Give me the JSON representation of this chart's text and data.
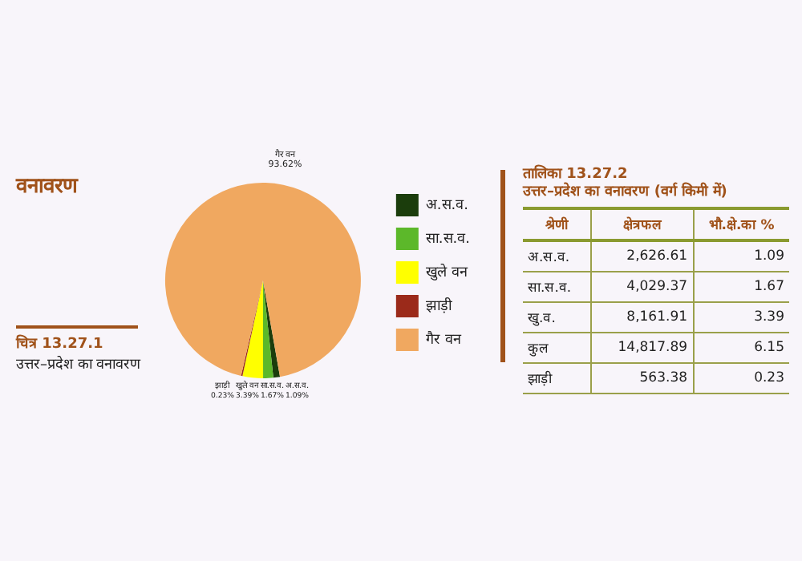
{
  "chart_data": [
    {
      "type": "pie",
      "title": "वनावरण",
      "annotations": [
        "चित्र 13.27.1",
        "उत्तर–प्रदेश का वनावरण"
      ],
      "categories": [
        "अ.स.व.",
        "सा.स.व.",
        "खुले वन",
        "झाड़ी",
        "गैर वन"
      ],
      "values": [
        1.09,
        1.67,
        3.39,
        0.23,
        93.62
      ],
      "colors": [
        "#1b3d0c",
        "#5cb82a",
        "#ffff00",
        "#9b2a1a",
        "#f0a860"
      ],
      "value_labels": [
        "1.09%",
        "1.67%",
        "3.39%",
        "0.23%",
        "93.62%"
      ],
      "legend": "right"
    },
    {
      "type": "other",
      "title": "तालिका 13.27.2",
      "subtitle": "उत्तर–प्रदेश का वनावरण (वर्ग किमी में)",
      "annotations": [
        "श्रेणी",
        "क्षेत्रफल",
        "भौ.क्षे.का %",
        "अ.स.व.",
        "2,626.61",
        "1.09",
        "सा.स.व.",
        "4,029.37",
        "1.67",
        "खु.व.",
        "8,161.91",
        "3.39",
        "कुल",
        "14,817.89",
        "6.15",
        "झाड़ी",
        "563.38",
        "0.23"
      ]
    }
  ]
}
